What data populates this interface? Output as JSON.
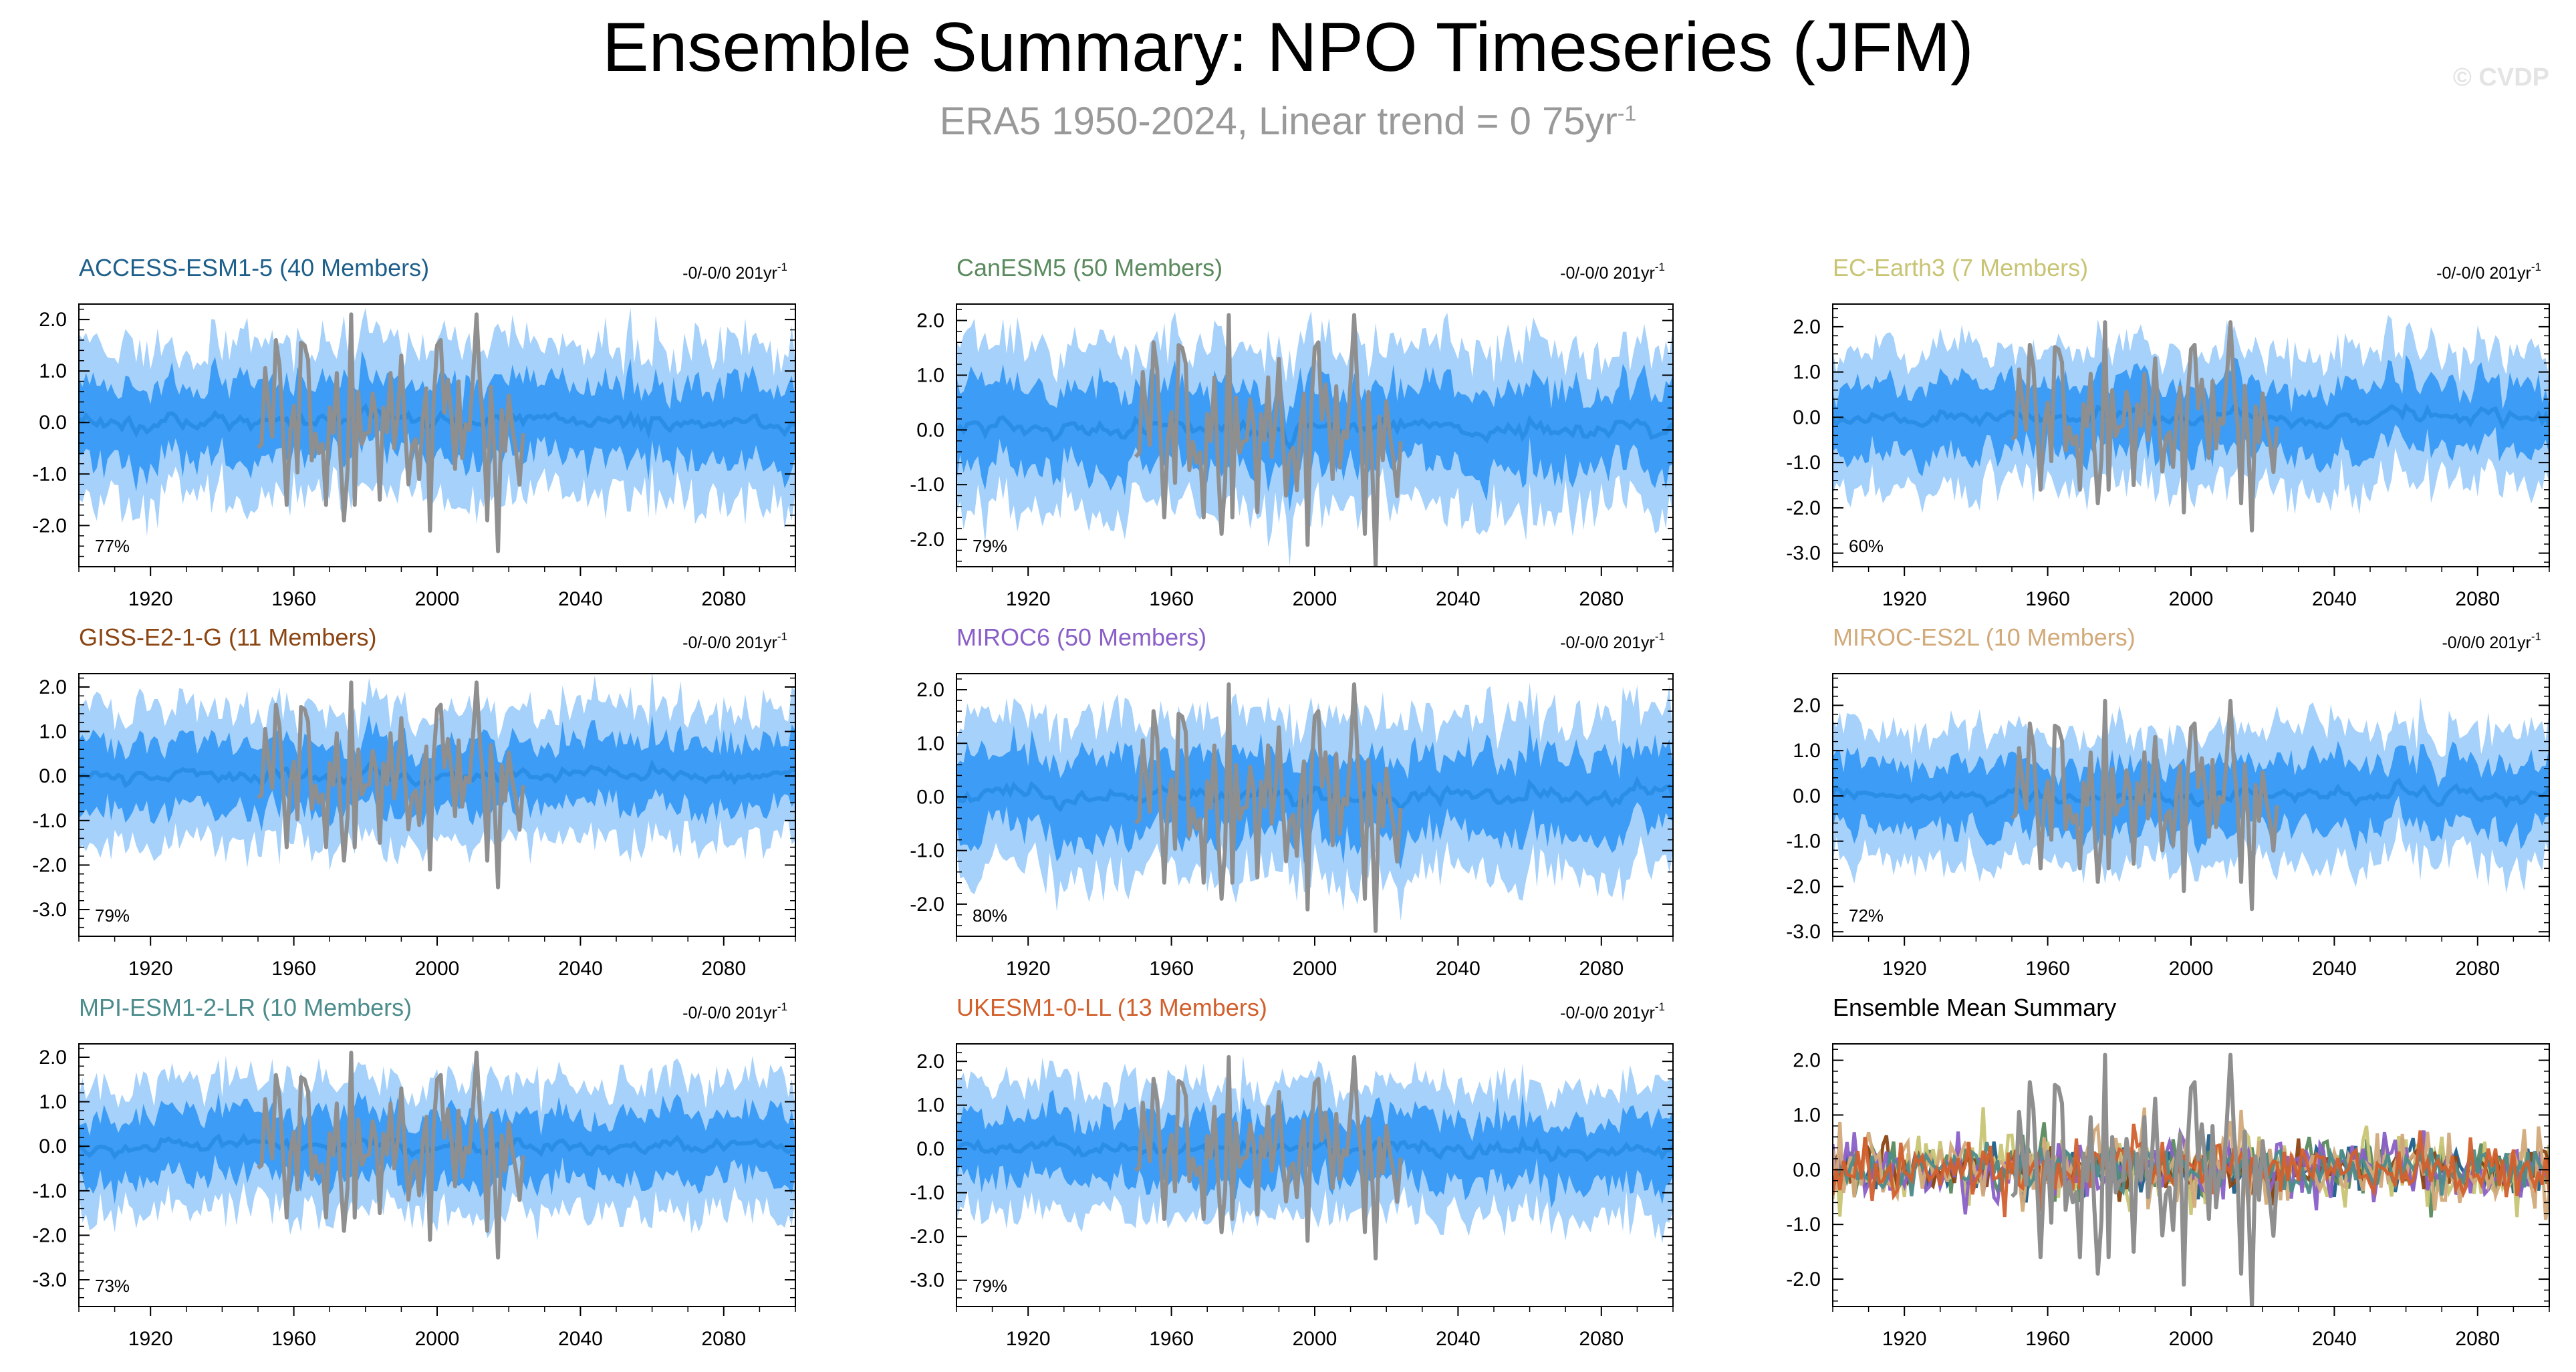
{
  "title": "Ensemble Summary: NPO Timeseries (JFM)",
  "subtitle_main": "ERA5 1950-2024, Linear trend = 0 75yr",
  "subtitle_sup": "-1",
  "watermark": "© CVDP",
  "colors": {
    "outer_band": "#a6d1fb",
    "inner_band": "#3d9cf5",
    "mean_line": "#2a8de6",
    "observed_line": "#8f8f8f"
  },
  "chart_data": [
    {
      "type": "area",
      "title": "ACCESS-ESM1-5 (40 Members)",
      "title_color": "#1d5f8a",
      "trend_label": "-0/-0/0 201yr",
      "trend_sup": "-1",
      "percent_label": "77%",
      "xlim": [
        1900,
        2100
      ],
      "ylim": [
        -2.8,
        2.3
      ],
      "yticks": [
        2.0,
        1.0,
        0.0,
        -1.0,
        -2.0
      ],
      "ytick_labels": [
        "2.0",
        "1.0",
        "0.0",
        "-1.0",
        "-2.0"
      ],
      "xticks": [
        1920,
        1960,
        2000,
        2040,
        2080
      ],
      "xtick_labels": [
        "1920",
        "1960",
        "2000",
        "2040",
        "2080"
      ],
      "series": [
        {
          "name": "",
          "kind": "ensemble_spread"
        },
        {
          "name": "",
          "kind": "observed"
        }
      ]
    },
    {
      "type": "area",
      "title": "CanESM5 (50 Members)",
      "title_color": "#5a8a5e",
      "trend_label": "-0/-0/0 201yr",
      "trend_sup": "-1",
      "percent_label": "79%",
      "xlim": [
        1900,
        2100
      ],
      "ylim": [
        -2.5,
        2.3
      ],
      "yticks": [
        2.0,
        1.0,
        0.0,
        -1.0,
        -2.0
      ],
      "ytick_labels": [
        "2.0",
        "1.0",
        "0.0",
        "-1.0",
        "-2.0"
      ],
      "xticks": [
        1920,
        1960,
        2000,
        2040,
        2080
      ],
      "xtick_labels": [
        "1920",
        "1960",
        "2000",
        "2040",
        "2080"
      ],
      "series": [
        {
          "name": "",
          "kind": "ensemble_spread"
        },
        {
          "name": "",
          "kind": "observed"
        }
      ]
    },
    {
      "type": "area",
      "title": "EC-Earth3 (7 Members)",
      "title_color": "#c8c474",
      "trend_label": "-0/-0/0 201yr",
      "trend_sup": "-1",
      "percent_label": "60%",
      "xlim": [
        1900,
        2100
      ],
      "ylim": [
        -3.3,
        2.5
      ],
      "yticks": [
        2.0,
        1.0,
        0.0,
        -1.0,
        -2.0,
        -3.0
      ],
      "ytick_labels": [
        "2.0",
        "1.0",
        "0.0",
        "-1.0",
        "-2.0",
        "-3.0"
      ],
      "xticks": [
        1920,
        1960,
        2000,
        2040,
        2080
      ],
      "xtick_labels": [
        "1920",
        "1960",
        "2000",
        "2040",
        "2080"
      ],
      "series": [
        {
          "name": "",
          "kind": "ensemble_spread"
        },
        {
          "name": "",
          "kind": "observed"
        }
      ]
    },
    {
      "type": "area",
      "title": "GISS-E2-1-G (11 Members)",
      "title_color": "#8b4513",
      "trend_label": "-0/-0/0 201yr",
      "trend_sup": "-1",
      "percent_label": "79%",
      "xlim": [
        1900,
        2100
      ],
      "ylim": [
        -3.6,
        2.3
      ],
      "yticks": [
        2.0,
        1.0,
        0.0,
        -1.0,
        -2.0,
        -3.0
      ],
      "ytick_labels": [
        "2.0",
        "1.0",
        "0.0",
        "-1.0",
        "-2.0",
        "-3.0"
      ],
      "xticks": [
        1920,
        1960,
        2000,
        2040,
        2080
      ],
      "xtick_labels": [
        "1920",
        "1960",
        "2000",
        "2040",
        "2080"
      ],
      "series": [
        {
          "name": "",
          "kind": "ensemble_spread"
        },
        {
          "name": "",
          "kind": "observed"
        }
      ]
    },
    {
      "type": "area",
      "title": "MIROC6 (50 Members)",
      "title_color": "#8a5fc7",
      "trend_label": "-0/-0/0 201yr",
      "trend_sup": "-1",
      "percent_label": "80%",
      "xlim": [
        1900,
        2100
      ],
      "ylim": [
        -2.6,
        2.3
      ],
      "yticks": [
        2.0,
        1.0,
        0.0,
        -1.0,
        -2.0
      ],
      "ytick_labels": [
        "2.0",
        "1.0",
        "0.0",
        "-1.0",
        "-2.0"
      ],
      "xticks": [
        1920,
        1960,
        2000,
        2040,
        2080
      ],
      "xtick_labels": [
        "1920",
        "1960",
        "2000",
        "2040",
        "2080"
      ],
      "series": [
        {
          "name": "",
          "kind": "ensemble_spread"
        },
        {
          "name": "",
          "kind": "observed"
        }
      ]
    },
    {
      "type": "area",
      "title": "MIROC-ES2L (10 Members)",
      "title_color": "#d2aa7a",
      "trend_label": "-0/0/0 201yr",
      "trend_sup": "-1",
      "percent_label": "72%",
      "xlim": [
        1900,
        2100
      ],
      "ylim": [
        -3.1,
        2.7
      ],
      "yticks": [
        2.0,
        1.0,
        0.0,
        -1.0,
        -2.0,
        -3.0
      ],
      "ytick_labels": [
        "2.0",
        "1.0",
        "0.0",
        "-1.0",
        "-2.0",
        "-3.0"
      ],
      "xticks": [
        1920,
        1960,
        2000,
        2040,
        2080
      ],
      "xtick_labels": [
        "1920",
        "1960",
        "2000",
        "2040",
        "2080"
      ],
      "series": [
        {
          "name": "",
          "kind": "ensemble_spread"
        },
        {
          "name": "",
          "kind": "observed"
        }
      ]
    },
    {
      "type": "area",
      "title": "MPI-ESM1-2-LR (10 Members)",
      "title_color": "#4c8c8c",
      "trend_label": "-0/-0/0 201yr",
      "trend_sup": "-1",
      "percent_label": "73%",
      "xlim": [
        1900,
        2100
      ],
      "ylim": [
        -3.6,
        2.3
      ],
      "yticks": [
        2.0,
        1.0,
        0.0,
        -1.0,
        -2.0,
        -3.0
      ],
      "ytick_labels": [
        "2.0",
        "1.0",
        "0.0",
        "-1.0",
        "-2.0",
        "-3.0"
      ],
      "xticks": [
        1920,
        1960,
        2000,
        2040,
        2080
      ],
      "xtick_labels": [
        "1920",
        "1960",
        "2000",
        "2040",
        "2080"
      ],
      "series": [
        {
          "name": "",
          "kind": "ensemble_spread"
        },
        {
          "name": "",
          "kind": "observed"
        }
      ]
    },
    {
      "type": "area",
      "title": "UKESM1-0-LL (13 Members)",
      "title_color": "#d2602d",
      "trend_label": "-0/-0/0 201yr",
      "trend_sup": "-1",
      "percent_label": "79%",
      "xlim": [
        1900,
        2100
      ],
      "ylim": [
        -3.6,
        2.4
      ],
      "yticks": [
        2.0,
        1.0,
        0.0,
        -1.0,
        -2.0,
        -3.0
      ],
      "ytick_labels": [
        "2.0",
        "1.0",
        "0.0",
        "-1.0",
        "-2.0",
        "-3.0"
      ],
      "xticks": [
        1920,
        1960,
        2000,
        2040,
        2080
      ],
      "xtick_labels": [
        "1920",
        "1960",
        "2000",
        "2040",
        "2080"
      ],
      "series": [
        {
          "name": "",
          "kind": "ensemble_spread"
        },
        {
          "name": "",
          "kind": "observed"
        }
      ]
    },
    {
      "type": "line",
      "title": "Ensemble Mean Summary",
      "title_color": "#000000",
      "trend_label": "",
      "trend_sup": "",
      "percent_label": "",
      "xlim": [
        1900,
        2100
      ],
      "ylim": [
        -2.5,
        2.3
      ],
      "yticks": [
        2.0,
        1.0,
        0.0,
        -1.0,
        -2.0
      ],
      "ytick_labels": [
        "2.0",
        "1.0",
        "0.0",
        "-1.0",
        "-2.0"
      ],
      "xticks": [
        1920,
        1960,
        2000,
        2040,
        2080
      ],
      "xtick_labels": [
        "1920",
        "1960",
        "2000",
        "2040",
        "2080"
      ],
      "series": [
        {
          "name": "",
          "color": "#1d5f8a"
        },
        {
          "name": "",
          "color": "#5a8a5e"
        },
        {
          "name": "",
          "color": "#c8c474"
        },
        {
          "name": "",
          "color": "#8b4513"
        },
        {
          "name": "",
          "color": "#8a5fc7"
        },
        {
          "name": "",
          "color": "#d2aa7a"
        },
        {
          "name": "",
          "color": "#4c8c8c"
        },
        {
          "name": "",
          "color": "#d2602d"
        },
        {
          "name": "",
          "kind": "observed"
        }
      ]
    }
  ]
}
